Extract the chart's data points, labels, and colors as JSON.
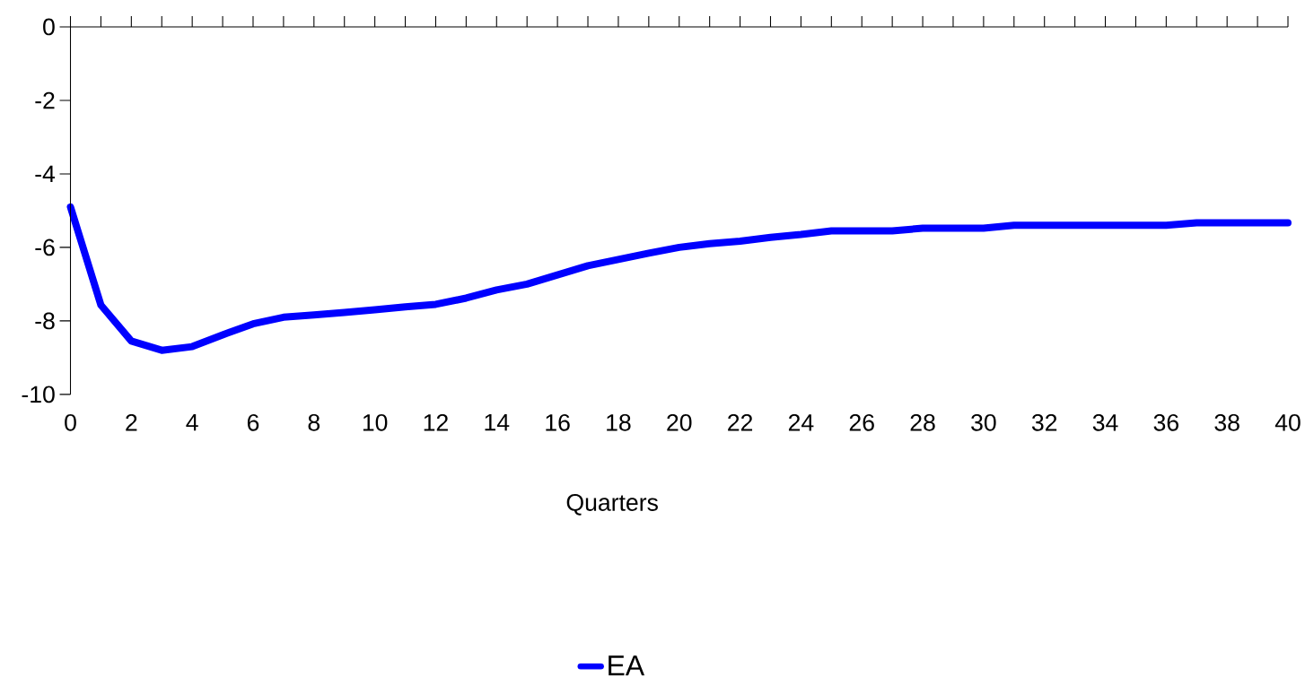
{
  "chart_data": {
    "type": "line",
    "xlabel": "Quarters",
    "x": [
      0,
      1,
      2,
      3,
      4,
      5,
      6,
      7,
      8,
      9,
      10,
      11,
      12,
      13,
      14,
      15,
      16,
      17,
      18,
      19,
      20,
      21,
      22,
      23,
      24,
      25,
      26,
      27,
      28,
      29,
      30,
      31,
      32,
      33,
      34,
      35,
      36,
      37,
      38,
      39,
      40
    ],
    "series": [
      {
        "name": "EA",
        "color": "#0000ff",
        "values": [
          -4.9,
          -7.57,
          -8.55,
          -8.8,
          -8.7,
          -8.38,
          -8.08,
          -7.9,
          -7.84,
          -7.77,
          -7.7,
          -7.62,
          -7.55,
          -7.38,
          -7.16,
          -7.0,
          -6.75,
          -6.5,
          -6.33,
          -6.16,
          -6.0,
          -5.9,
          -5.83,
          -5.73,
          -5.65,
          -5.55,
          -5.55,
          -5.55,
          -5.48,
          -5.48,
          -5.48,
          -5.4,
          -5.4,
          -5.4,
          -5.4,
          -5.4,
          -5.4,
          -5.33,
          -5.33,
          -5.33,
          -5.33
        ]
      }
    ],
    "xlim": [
      0,
      40
    ],
    "ylim": [
      -10,
      0
    ],
    "xticks": [
      0,
      2,
      4,
      6,
      8,
      10,
      12,
      14,
      16,
      18,
      20,
      22,
      24,
      26,
      28,
      30,
      32,
      34,
      36,
      38,
      40
    ],
    "yticks": [
      0,
      -2,
      -4,
      -6,
      -8,
      -10
    ],
    "grid": false,
    "legend": "bottom",
    "marker": "none",
    "line_style": "solid"
  }
}
